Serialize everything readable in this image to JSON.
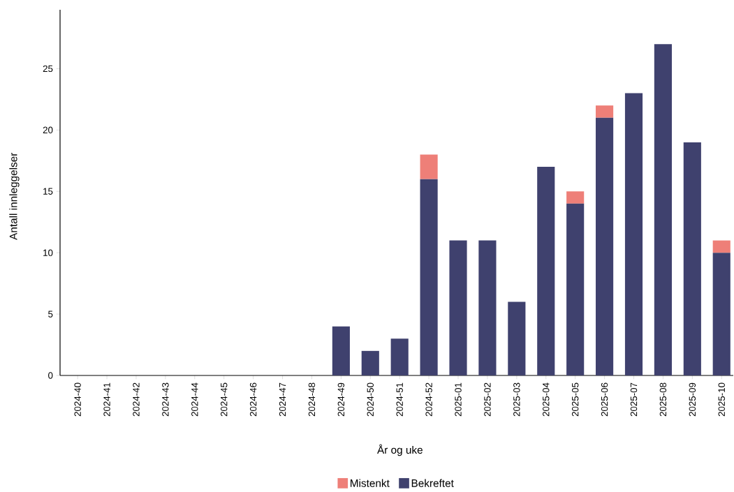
{
  "chart_data": {
    "type": "bar",
    "stacked": true,
    "xlabel": "År og uke",
    "ylabel": "Antall innleggelser",
    "categories": [
      "2024-40",
      "2024-41",
      "2024-42",
      "2024-43",
      "2024-44",
      "2024-45",
      "2024-46",
      "2024-47",
      "2024-48",
      "2024-49",
      "2024-50",
      "2024-51",
      "2024-52",
      "2025-01",
      "2025-02",
      "2025-03",
      "2025-04",
      "2025-05",
      "2025-06",
      "2025-07",
      "2025-08",
      "2025-09",
      "2025-10"
    ],
    "series": [
      {
        "name": "Bekreftet",
        "color": "#3f416e",
        "values": [
          0,
          0,
          0,
          0,
          0,
          0,
          0,
          0,
          0,
          4,
          2,
          3,
          16,
          11,
          11,
          6,
          17,
          14,
          21,
          23,
          27,
          19,
          10
        ]
      },
      {
        "name": "Mistenkt",
        "color": "#ee7f78",
        "values": [
          0,
          0,
          0,
          0,
          0,
          0,
          0,
          0,
          0,
          0,
          0,
          0,
          2,
          0,
          0,
          0,
          0,
          1,
          1,
          0,
          0,
          0,
          1
        ]
      }
    ],
    "ylim": [
      0,
      29.8
    ],
    "yticks": [
      0,
      5,
      10,
      15,
      20,
      25
    ],
    "legend": "bottom"
  }
}
